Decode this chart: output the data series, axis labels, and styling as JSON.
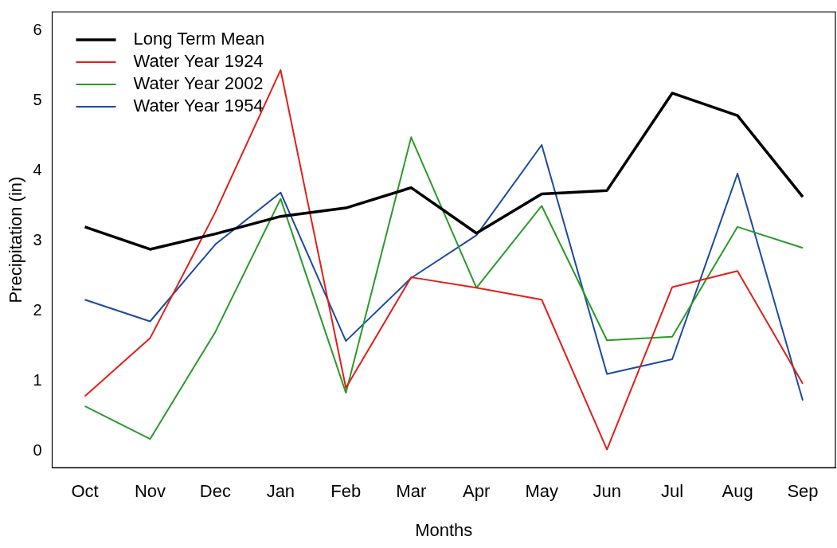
{
  "chart_data": {
    "type": "line",
    "xlabel": "Months",
    "ylabel": "Precipitation (in)",
    "categories": [
      "Oct",
      "Nov",
      "Dec",
      "Jan",
      "Feb",
      "Mar",
      "Apr",
      "May",
      "Jun",
      "Jul",
      "Aug",
      "Sep"
    ],
    "series": [
      {
        "name": "Long Term Mean",
        "color": "#000000",
        "values": [
          3.2,
          2.88,
          3.1,
          3.35,
          3.47,
          3.76,
          3.11,
          3.67,
          3.72,
          5.11,
          4.79,
          3.63
        ]
      },
      {
        "name": "Water Year 1924",
        "color": "#e0201a",
        "values": [
          0.78,
          1.61,
          3.41,
          5.44,
          0.9,
          2.48,
          2.33,
          2.16,
          0.02,
          2.34,
          2.57,
          0.96
        ]
      },
      {
        "name": "Water Year 2002",
        "color": "#2a9a2a",
        "values": [
          0.64,
          0.17,
          1.7,
          3.6,
          0.83,
          4.48,
          2.33,
          3.5,
          1.58,
          1.63,
          3.2,
          2.9
        ]
      },
      {
        "name": "Water Year 1954",
        "color": "#1c4aa0",
        "values": [
          2.16,
          1.85,
          2.95,
          3.69,
          1.57,
          2.47,
          3.08,
          4.37,
          1.1,
          1.31,
          3.96,
          0.72
        ]
      }
    ],
    "ylim": [
      -0.24,
      6.27
    ],
    "yticks": [
      0,
      1,
      2,
      3,
      4,
      5,
      6
    ],
    "grid": false,
    "legend": "top left",
    "marker": "none",
    "line_style": "solid"
  }
}
